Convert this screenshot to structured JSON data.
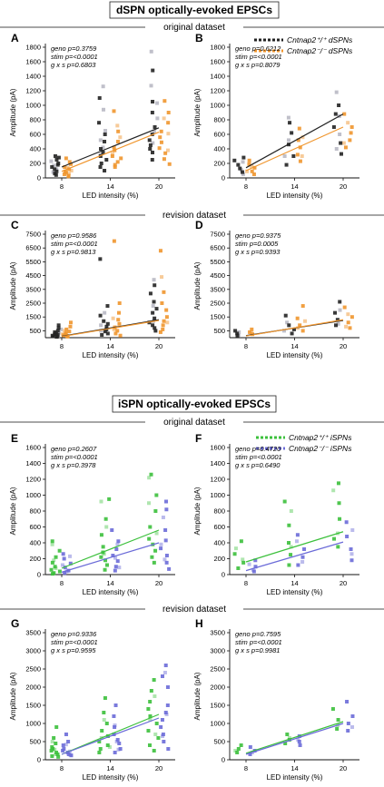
{
  "sections": [
    {
      "title": "dSPN optically-evoked EPSCs"
    },
    {
      "title": "iSPN optically-evoked EPSCs"
    }
  ],
  "dataset_labels": {
    "d_original": "original dataset",
    "d_revision": "revision dataset",
    "i_original": "original dataset",
    "i_revision": "revision dataset"
  },
  "legend_d": {
    "wt": "Cntnap2⁺/⁺ dSPNs",
    "ko": "Cntnap2⁻/⁻ dSPNs",
    "colors": {
      "wt": "#222222",
      "wt_light": "#b9b9c4",
      "ko": "#f0962e",
      "ko_light": "#f6c58e"
    }
  },
  "legend_i": {
    "wt": "Cntnap2⁺/⁺ iSPNs",
    "ko": "Cntnap2⁻/⁻ iSPNs",
    "colors": {
      "wt": "#3cc03c",
      "wt_light": "#a6e3a6",
      "ko": "#6b6bd8",
      "ko_light": "#b4b4ea"
    }
  },
  "chart_data": [
    {
      "panel": "A",
      "type": "scatter",
      "group": "d",
      "ylabel": "Amplitude (pA)",
      "xlabel": "LED intensity (%)",
      "x_categories": [
        8,
        14,
        20
      ],
      "yticks": [
        0,
        200,
        400,
        600,
        800,
        1000,
        1200,
        1400,
        1600,
        1800
      ],
      "ylim": [
        0,
        1800
      ],
      "stats": [
        "geno p=0.3759",
        "stim p=<0.0001",
        "g x s p=0.6803"
      ],
      "fit": {
        "wt": [
          150,
          690
        ],
        "ko": [
          90,
          630
        ]
      },
      "points": {
        "wt": {
          "8": [
            300,
            280,
            250,
            200,
            180,
            150,
            120,
            90,
            60,
            40
          ],
          "14": [
            1100,
            760,
            600,
            500,
            400,
            350,
            300,
            250,
            200,
            150,
            100
          ],
          "20": [
            1480,
            1050,
            900,
            700,
            600,
            520,
            450,
            400,
            350,
            250
          ]
        },
        "wt_light": {
          "8": [
            230,
            170,
            120,
            80
          ],
          "14": [
            1260,
            940,
            650,
            520,
            420,
            320
          ],
          "20": [
            1740,
            1270,
            1030,
            820,
            640,
            480
          ]
        },
        "ko": {
          "8": [
            270,
            220,
            190,
            150,
            120,
            90,
            70,
            50,
            30,
            20
          ],
          "14": [
            920,
            640,
            500,
            420,
            380,
            300,
            270,
            220,
            180,
            150
          ],
          "20": [
            1060,
            900,
            760,
            640,
            560,
            490,
            410,
            340,
            260,
            190
          ]
        },
        "ko_light": {
          "8": [
            140,
            100,
            60
          ],
          "14": [
            720,
            560,
            330
          ],
          "20": [
            820,
            610,
            380
          ]
        }
      }
    },
    {
      "panel": "B",
      "type": "scatter",
      "group": "d",
      "ylabel": "Amplitude (pA)",
      "xlabel": "LED intensity (%)",
      "x_categories": [
        8,
        14,
        20
      ],
      "yticks": [
        0,
        200,
        400,
        600,
        800,
        1000,
        1200,
        1400,
        1600,
        1800
      ],
      "ylim": [
        0,
        1800
      ],
      "stats": [
        "geno p=0.6212",
        "stim p=<0.0001",
        "g x s p=0.8079"
      ],
      "fit": {
        "wt": [
          140,
          880
        ],
        "ko": [
          100,
          700
        ]
      },
      "points": {
        "wt": {
          "8": [
            280,
            240,
            180,
            130,
            80
          ],
          "14": [
            760,
            620,
            460,
            300,
            180
          ],
          "20": [
            1000,
            880,
            700,
            480,
            330
          ]
        },
        "wt_light": {
          "8": [
            220,
            110,
            50
          ],
          "14": [
            830,
            520,
            300
          ],
          "20": [
            1180,
            850,
            600,
            400
          ]
        },
        "ko": {
          "8": [
            240,
            190,
            140,
            90,
            50
          ],
          "14": [
            680,
            520,
            420,
            320,
            230
          ],
          "20": [
            880,
            700,
            620,
            520,
            420
          ]
        },
        "ko_light": {
          "8": [
            160,
            90
          ],
          "14": [
            560,
            300
          ],
          "20": [
            760,
            480
          ]
        }
      }
    },
    {
      "panel": "C",
      "type": "scatter",
      "group": "d",
      "ylabel": "Amplitude (pA)",
      "xlabel": "LED intensity (%)",
      "x_categories": [
        8,
        14,
        20
      ],
      "yticks": [
        500,
        1500,
        2500,
        3500,
        4500,
        5500,
        6500,
        7500
      ],
      "ylim": [
        0,
        7500
      ],
      "stats": [
        "geno p=0.9586",
        "stim p=<0.0001",
        "g x s p=0.9813"
      ],
      "fit": {
        "wt": [
          100,
          1300
        ],
        "ko": [
          80,
          1250
        ]
      },
      "points": {
        "wt": {
          "8": [
            900,
            700,
            500,
            400,
            300,
            250,
            200,
            150,
            100,
            80,
            60
          ],
          "14": [
            5700,
            2300,
            1600,
            1200,
            1000,
            800,
            600,
            450,
            300,
            200
          ],
          "20": [
            3800,
            3200,
            2600,
            2100,
            1800,
            1400,
            1100,
            900,
            700,
            500
          ]
        },
        "wt_light": {
          "8": [
            600,
            350,
            200
          ],
          "14": [
            1800,
            900,
            500
          ],
          "20": [
            4200,
            2300,
            1200
          ]
        },
        "ko": {
          "8": [
            1100,
            800,
            600,
            450,
            350,
            250,
            180,
            120,
            80
          ],
          "14": [
            7000,
            2500,
            1800,
            1300,
            1000,
            750,
            500,
            300,
            150
          ],
          "20": [
            6300,
            3300,
            2500,
            2000,
            1500,
            1200,
            900,
            600,
            400
          ]
        },
        "ko_light": {
          "8": [
            500,
            250
          ],
          "14": [
            1400,
            600
          ],
          "20": [
            4400,
            1100
          ]
        }
      }
    },
    {
      "panel": "D",
      "type": "scatter",
      "group": "d",
      "ylabel": "Amplitude (pA)",
      "xlabel": "LED intensity (%)",
      "x_categories": [
        8,
        14,
        20
      ],
      "yticks": [
        500,
        1500,
        2500,
        3500,
        4500,
        5500,
        6500,
        7500
      ],
      "ylim": [
        0,
        7500
      ],
      "stats": [
        "geno p=0.9375",
        "stim p=0.0005",
        "g x s p=0.9393"
      ],
      "fit": {
        "wt": [
          150,
          1250
        ],
        "ko": [
          120,
          1300
        ]
      },
      "points": {
        "wt": {
          "8": [
            500,
            300,
            150
          ],
          "14": [
            1600,
            900,
            600,
            300
          ],
          "20": [
            2600,
            1800,
            1300,
            900
          ]
        },
        "wt_light": {
          "8": [
            400,
            200
          ],
          "14": [
            1100,
            500
          ],
          "20": [
            2000,
            1000
          ]
        },
        "ko": {
          "8": [
            600,
            400,
            250
          ],
          "14": [
            2300,
            1400,
            900,
            500
          ],
          "20": [
            2200,
            1500,
            1100,
            700
          ]
        },
        "ko_light": {
          "8": [
            350
          ],
          "14": [
            1200,
            700
          ],
          "20": [
            1700,
            800
          ]
        }
      }
    },
    {
      "panel": "E",
      "type": "scatter",
      "group": "i",
      "ylabel": "Amplitude (pA)",
      "xlabel": "LED intensity (%)",
      "x_categories": [
        8,
        14,
        20
      ],
      "yticks": [
        0,
        200,
        400,
        600,
        800,
        1000,
        1200,
        1400,
        1600
      ],
      "ylim": [
        0,
        1600
      ],
      "stats": [
        "geno p=0.2607",
        "stim p=<0.0001",
        "g x s p=0.3978"
      ],
      "fit": {
        "wt": [
          80,
          560
        ],
        "ko": [
          30,
          400
        ]
      },
      "points": {
        "wt": {
          "8": [
            420,
            300,
            220,
            150,
            100,
            60,
            40,
            20,
            10
          ],
          "14": [
            950,
            700,
            500,
            350,
            280,
            220,
            180,
            120,
            60
          ],
          "20": [
            1260,
            1000,
            800,
            600,
            450,
            380,
            300,
            220,
            150
          ]
        },
        "wt_light": {
          "8": [
            380,
            180,
            80
          ],
          "14": [
            920,
            600,
            260
          ],
          "20": [
            1220,
            900,
            520
          ]
        },
        "ko": {
          "8": [
            260,
            200,
            140,
            90,
            50,
            20
          ],
          "14": [
            560,
            420,
            320,
            240,
            170,
            100,
            50
          ],
          "20": [
            920,
            820,
            560,
            430,
            330,
            240,
            150,
            70
          ]
        },
        "ko_light": {
          "8": [
            230,
            120,
            40
          ],
          "14": [
            380,
            210,
            90
          ],
          "20": [
            720,
            380,
            190
          ]
        }
      }
    },
    {
      "panel": "F",
      "type": "scatter",
      "group": "i",
      "ylabel": "Amplitude (pA)",
      "xlabel": "LED intensity (%)",
      "x_categories": [
        8,
        14,
        20
      ],
      "yticks": [
        0,
        200,
        400,
        600,
        800,
        1000,
        1200,
        1400,
        1600
      ],
      "ylim": [
        0,
        1600
      ],
      "stats": [
        "geno p=0.4720",
        "stim p=<0.0001",
        "g x s p=0.6490"
      ],
      "fit": {
        "wt": [
          160,
          540
        ],
        "ko": [
          50,
          410
        ]
      },
      "points": {
        "wt": {
          "8": [
            420,
            260,
            150,
            80
          ],
          "14": [
            920,
            620,
            400,
            250,
            120
          ],
          "20": [
            1150,
            900,
            700,
            450,
            350
          ]
        },
        "wt_light": {
          "8": [
            330,
            190
          ],
          "14": [
            800,
            350
          ],
          "20": [
            1060,
            520
          ]
        },
        "ko": {
          "8": [
            180,
            100,
            40
          ],
          "14": [
            500,
            320,
            220,
            120
          ],
          "20": [
            660,
            480,
            320,
            180
          ]
        },
        "ko_light": {
          "8": [
            130,
            60
          ],
          "14": [
            420,
            160
          ],
          "20": [
            560,
            260
          ]
        }
      }
    },
    {
      "panel": "G",
      "type": "scatter",
      "group": "i",
      "ylabel": "Amplitude (pA)",
      "xlabel": "LED intensity (%)",
      "x_categories": [
        8,
        14,
        20
      ],
      "yticks": [
        0,
        500,
        1000,
        1500,
        2000,
        2500,
        3000,
        3500
      ],
      "ylim": [
        0,
        3500
      ],
      "stats": [
        "geno p=0.9336",
        "stim p=<0.0001",
        "g x s p=0.9595"
      ],
      "fit": {
        "wt": [
          150,
          1250
        ],
        "ko": [
          150,
          1150
        ]
      },
      "points": {
        "wt": {
          "8": [
            900,
            600,
            450,
            350,
            300,
            250,
            200,
            150,
            100,
            80
          ],
          "14": [
            1700,
            1300,
            1000,
            800,
            650,
            500,
            400,
            300,
            200
          ],
          "20": [
            2200,
            1900,
            1600,
            1400,
            1200,
            1000,
            800,
            600,
            400,
            250
          ]
        },
        "wt_light": {
          "8": [
            500,
            280,
            150
          ],
          "14": [
            1100,
            600,
            350
          ],
          "20": [
            1750,
            1100,
            700
          ]
        },
        "ko": {
          "8": [
            700,
            500,
            400,
            300,
            250,
            200,
            150,
            120
          ],
          "14": [
            1500,
            1200,
            900,
            700,
            550,
            450,
            300,
            200
          ],
          "20": [
            2600,
            2300,
            2000,
            1500,
            1300,
            1100,
            900,
            700,
            500,
            300
          ]
        },
        "ko_light": {
          "8": [
            420,
            230,
            130
          ],
          "14": [
            950,
            500,
            280
          ],
          "20": [
            2400,
            1250,
            650
          ]
        }
      }
    },
    {
      "panel": "H",
      "type": "scatter",
      "group": "i",
      "ylabel": "Amplitude (pA)",
      "xlabel": "LED intensity (%)",
      "x_categories": [
        8,
        14,
        20
      ],
      "yticks": [
        0,
        500,
        1000,
        1500,
        2000,
        2500,
        3000,
        3500
      ],
      "ylim": [
        0,
        3500
      ],
      "stats": [
        "geno p=0.7595",
        "stim p=<0.0001",
        "g x s p=0.9981"
      ],
      "fit": {
        "wt": [
          180,
          1050
        ],
        "ko": [
          150,
          1000
        ]
      },
      "points": {
        "wt": {
          "8": [
            400,
            300,
            200
          ],
          "14": [
            700,
            550,
            450
          ],
          "20": [
            1400,
            1100,
            850
          ]
        },
        "wt_light": {
          "8": [
            250
          ],
          "14": [
            600
          ],
          "20": [
            950
          ]
        },
        "ko": {
          "8": [
            350,
            250,
            150
          ],
          "14": [
            650,
            500,
            400
          ],
          "20": [
            1600,
            1200,
            1000,
            800
          ]
        },
        "ko_light": {
          "8": [
            200
          ],
          "14": [
            550
          ],
          "20": [
            900
          ]
        }
      }
    }
  ]
}
